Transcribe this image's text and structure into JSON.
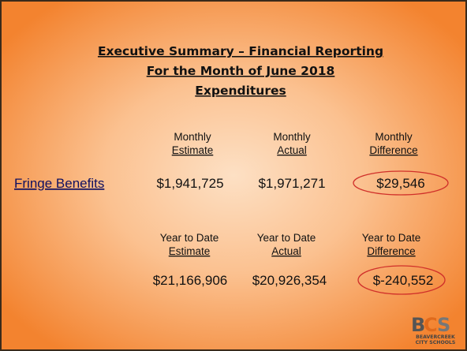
{
  "title": [
    "Executive Summary – Financial Reporting",
    "For the Month of June 2018",
    "Expenditures"
  ],
  "monthly": {
    "headers": [
      [
        "Monthly",
        "Estimate"
      ],
      [
        "Monthly",
        "Actual"
      ],
      [
        "Monthly",
        "Difference"
      ]
    ],
    "row_label": "Fringe Benefits",
    "values": [
      "$1,941,725",
      "$1,971,271",
      "$29,546"
    ]
  },
  "year_to_date": {
    "headers": [
      [
        "Year to Date",
        "Estimate"
      ],
      [
        "Year to Date",
        "Actual"
      ],
      [
        "Year to Date",
        "Difference"
      ]
    ],
    "values": [
      "$21,166,906",
      "$20,926,354",
      "$-240,552"
    ]
  },
  "logo": {
    "mark": [
      "B",
      "C",
      "S"
    ],
    "lines": [
      "BEAVERCREEK",
      "CITY SCHOOLS"
    ]
  }
}
